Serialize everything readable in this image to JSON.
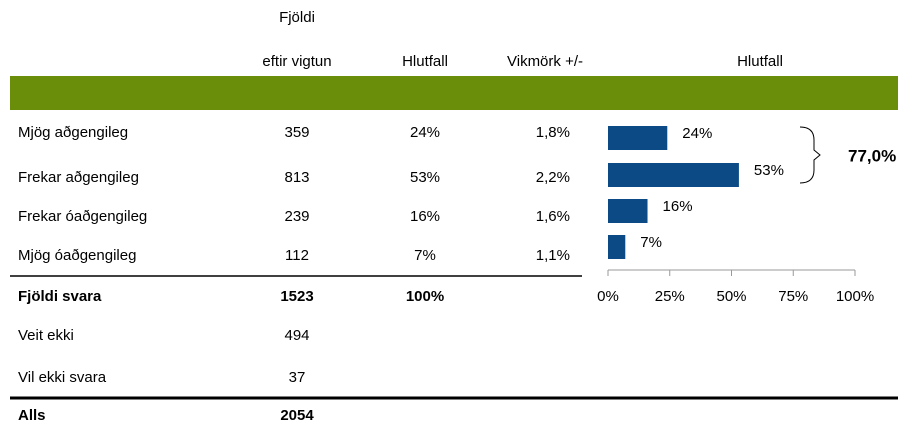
{
  "table": {
    "count_header": [
      "Fjöldi",
      "eftir vigtun"
    ],
    "share_header": "Hlutfall",
    "margin_header": "Vikmörk +/-",
    "rows": [
      [
        "Mjög aðgengileg",
        "359",
        "24%",
        "1,8%"
      ],
      [
        "Frekar aðgengileg",
        "813",
        "53%",
        "2,2%"
      ],
      [
        "Frekar óaðgengileg",
        "239",
        "16%",
        "1,6%"
      ],
      [
        "Mjög óaðgengileg",
        "112",
        "7%",
        "1,1%"
      ],
      [
        "Fjöldi svara",
        "1523",
        "100%"
      ],
      [
        "Veit ekki",
        "494"
      ],
      [
        "Vil ekki svara",
        "37"
      ],
      [
        "Alls",
        "2054"
      ]
    ]
  },
  "chart_data": {
    "type": "bar",
    "orientation": "horizontal",
    "title": "Hlutfall",
    "values": [
      24,
      53,
      16,
      7
    ],
    "value_labels": [
      "24%",
      "53%",
      "16%",
      "7%"
    ],
    "color": "#0b4a84",
    "xlim": [
      0,
      100
    ],
    "xticks": [
      {
        "value": 0,
        "label": "0%"
      },
      {
        "value": 25,
        "label": "25%"
      },
      {
        "value": 50,
        "label": "50%"
      },
      {
        "value": 75,
        "label": "75%"
      },
      {
        "value": 100,
        "label": "100%"
      }
    ],
    "annotation": "77,0%"
  }
}
